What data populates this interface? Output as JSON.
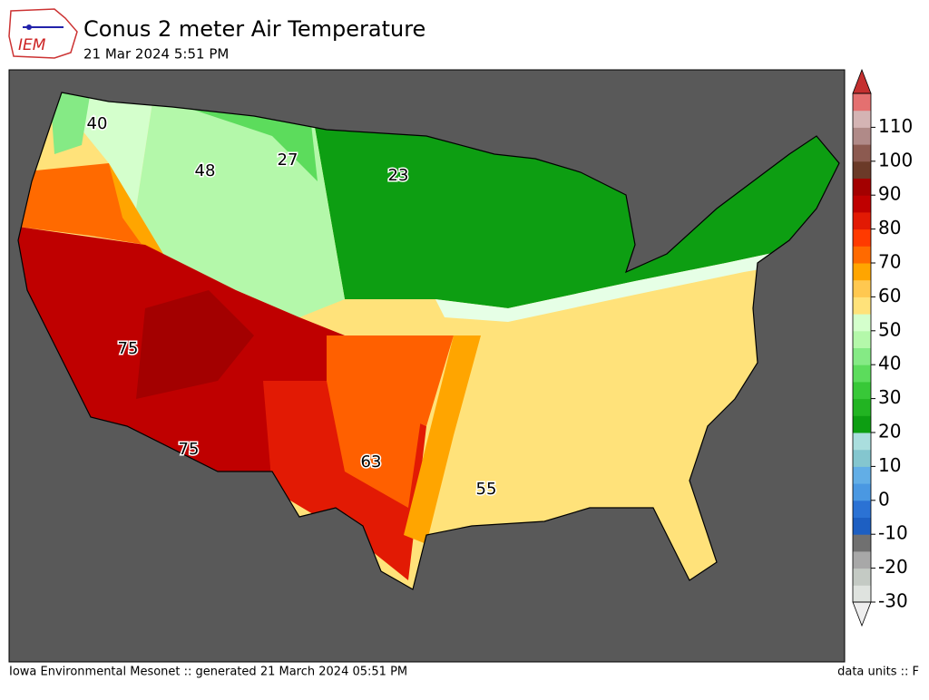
{
  "header": {
    "logo_text": "IEM",
    "title": "Conus 2 meter Air Temperature",
    "subtitle": "21 Mar 2024 5:51 PM"
  },
  "map": {
    "contour_labels": [
      40,
      48,
      27,
      23,
      75,
      75,
      63,
      55
    ]
  },
  "colorbar": {
    "lim": [
      -30,
      120
    ],
    "ticks": [
      -30,
      -20,
      -10,
      0,
      10,
      20,
      30,
      40,
      50,
      60,
      70,
      80,
      90,
      100,
      110
    ],
    "colors": [
      "#dfe3df",
      "#c4cac4",
      "#a8a8a8",
      "#707070",
      "#1d5fc2",
      "#2b72d4",
      "#4a98e2",
      "#62aee6",
      "#84c6cf",
      "#aadede",
      "#0d9e12",
      "#22b422",
      "#38c838",
      "#5cdc5c",
      "#85ea85",
      "#b4f8aa",
      "#d4ffcc",
      "#ffe27a",
      "#ffc850",
      "#ffa500",
      "#ff6a00",
      "#ff3a00",
      "#e21a04",
      "#bf0000",
      "#a30000",
      "#6b3a28",
      "#8c5a50",
      "#b08a88",
      "#d4b4b4",
      "#e47070"
    ]
  },
  "footer": {
    "left": "Iowa Environmental Mesonet :: generated 21 March 2024 05:51 PM",
    "right": "data units :: F"
  }
}
